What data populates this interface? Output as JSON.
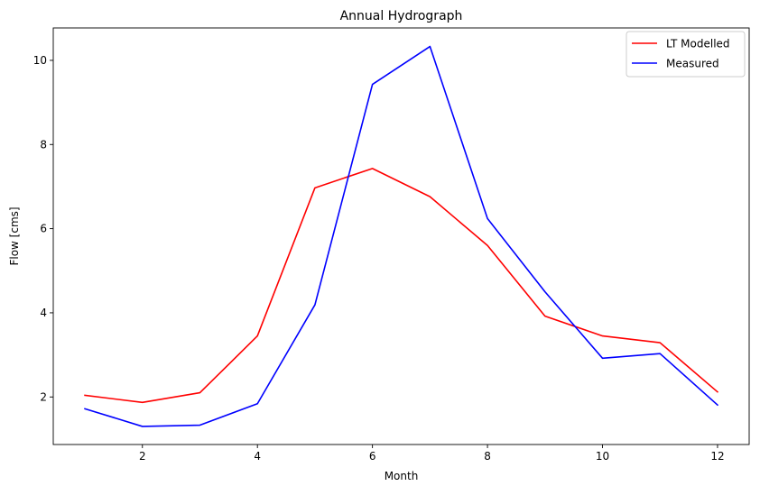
{
  "chart_data": {
    "type": "line",
    "title": "Annual Hydrograph",
    "xlabel": "Month",
    "ylabel": "Flow [cms]",
    "x": [
      1,
      2,
      3,
      4,
      5,
      6,
      7,
      8,
      9,
      10,
      11,
      12
    ],
    "xlim": [
      0.45,
      12.55
    ],
    "ylim": [
      0.87,
      10.77
    ],
    "xticks": [
      2,
      4,
      6,
      8,
      10,
      12
    ],
    "yticks": [
      2,
      4,
      6,
      8,
      10
    ],
    "grid": false,
    "legend_position": "top-right",
    "series": [
      {
        "name": "LT Modelled",
        "color": "#ff0000",
        "values": [
          2.04,
          1.87,
          2.1,
          3.45,
          6.97,
          7.43,
          6.76,
          5.6,
          3.92,
          3.45,
          3.29,
          2.12
        ]
      },
      {
        "name": "Measured",
        "color": "#0000ff",
        "values": [
          1.72,
          1.3,
          1.33,
          1.84,
          4.19,
          9.43,
          10.33,
          6.24,
          4.5,
          2.92,
          3.03,
          1.81
        ]
      }
    ]
  }
}
